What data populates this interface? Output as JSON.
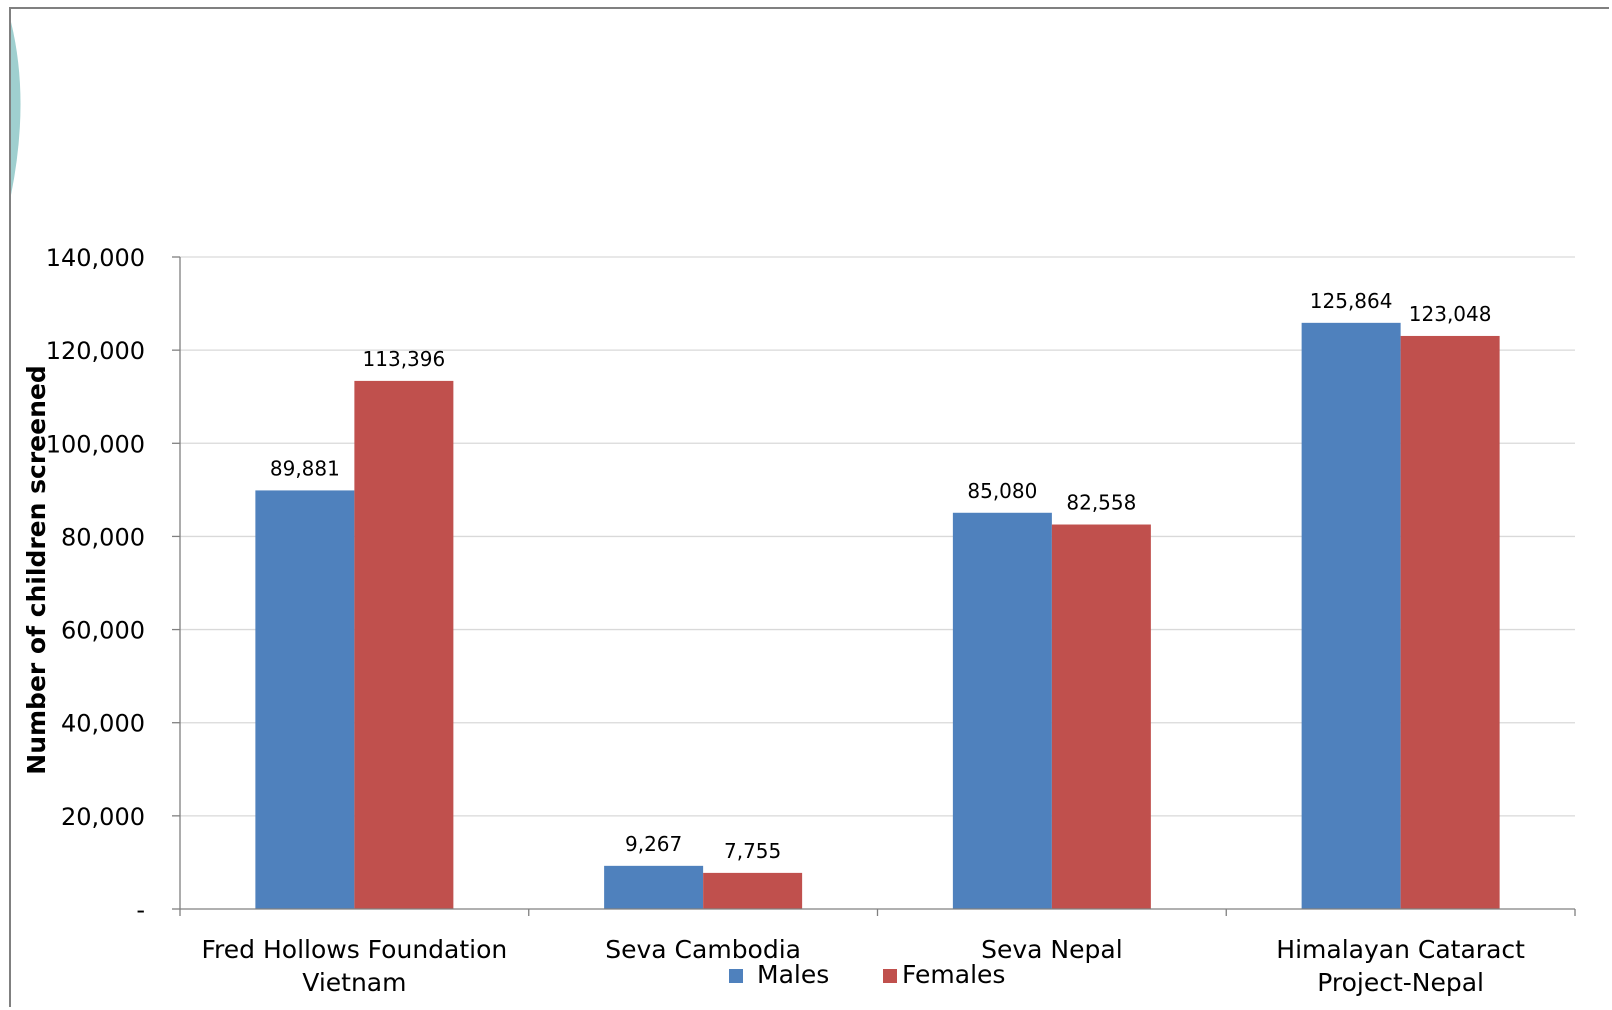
{
  "chart_data": {
    "type": "bar",
    "categories": [
      [
        "Fred Hollows Foundation",
        "Vietnam"
      ],
      [
        "Seva Cambodia"
      ],
      [
        "Seva Nepal"
      ],
      [
        "Himalayan Cataract",
        "Project-Nepal"
      ]
    ],
    "series": [
      {
        "name": "Males",
        "color": "#4F81BD",
        "values": [
          89881,
          9267,
          85080,
          125864
        ],
        "labels": [
          "89,881",
          "9,267",
          "85,080",
          "125,864"
        ]
      },
      {
        "name": "Females",
        "color": "#C0504D",
        "values": [
          113396,
          7755,
          82558,
          123048
        ],
        "labels": [
          "113,396",
          "7,755",
          "82,558",
          "123,048"
        ]
      }
    ],
    "ylabel": "Number of children screened",
    "ylim": [
      0,
      140000
    ],
    "yticks": [
      0,
      20000,
      40000,
      60000,
      80000,
      100000,
      120000,
      140000
    ],
    "ytick_labels": [
      "-",
      "20,000",
      "40,000",
      "60,000",
      "80,000",
      "100,000",
      "120,000",
      "140,000"
    ],
    "grid": true,
    "legend": "bottom-center",
    "gridline_color": "#D9D9D9",
    "frame_color": "#808080",
    "decoration_color": "#9FCFCF"
  }
}
